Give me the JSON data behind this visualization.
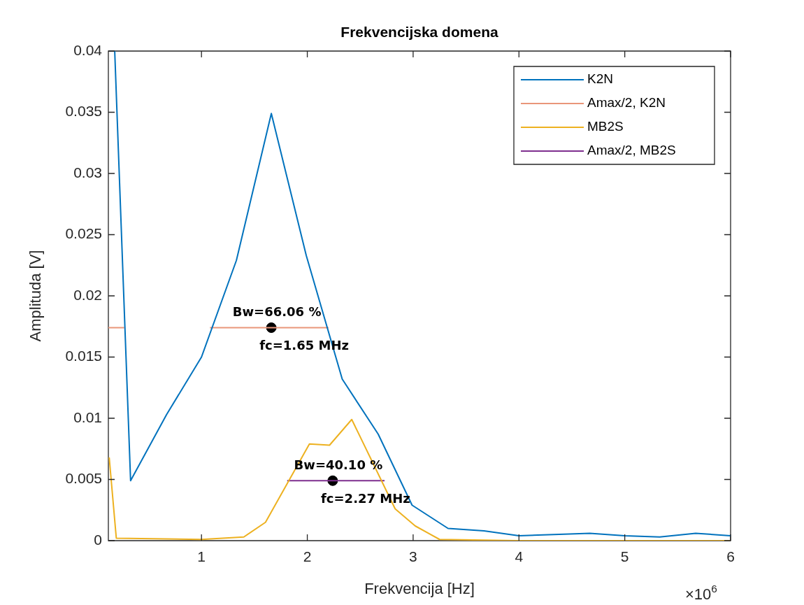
{
  "chart_data": {
    "type": "line",
    "title": "Frekvencijska domena",
    "xlabel": "Frekvencija [Hz]",
    "ylabel": "Amplituda [V]",
    "xlim": [
      0.12,
      6
    ],
    "ylim": [
      0,
      0.04
    ],
    "xticks": [
      1,
      2,
      3,
      4,
      5,
      6
    ],
    "yticks": [
      0,
      0.005,
      0.01,
      0.015,
      0.02,
      0.025,
      0.03,
      0.035,
      0.04
    ],
    "grid": false,
    "legend": "top right",
    "marker": "none",
    "line_style": "solid",
    "series": [
      {
        "name": "K2N",
        "color": "#0072bd",
        "x": [
          0.18,
          0.33,
          0.67,
          1.0,
          1.33,
          1.66,
          1.99,
          2.33,
          2.67,
          2.99,
          3.33,
          3.67,
          4.0,
          4.33,
          4.67,
          5.0,
          5.33,
          5.67,
          6.0
        ],
        "values": [
          0.04,
          0.0049,
          0.0103,
          0.015,
          0.0229,
          0.0349,
          0.0233,
          0.0132,
          0.0087,
          0.0029,
          0.001,
          0.0008,
          0.0004,
          0.0005,
          0.0006,
          0.0004,
          0.0003,
          0.0006,
          0.0004
        ]
      },
      {
        "name": "Amax/2, K2N",
        "color": "#e9967a",
        "x": [
          0.12,
          0.27,
          0.7,
          1.08,
          2.2
        ],
        "values": [
          0.0174,
          0.0174,
          null,
          0.0174,
          0.0174
        ]
      },
      {
        "name": "MB2S",
        "color": "#edb120",
        "x": [
          0.128,
          0.195,
          1.0,
          1.4,
          1.605,
          2.02,
          2.21,
          2.42,
          2.83,
          3.02,
          3.25,
          4.0,
          5.0,
          6.0
        ],
        "values": [
          0.0068,
          0.0002,
          0.0001,
          0.0003,
          0.0015,
          0.0079,
          0.0078,
          0.0099,
          0.0026,
          0.0012,
          0.0001,
          0,
          0,
          0
        ]
      },
      {
        "name": "Amax/2, MB2S",
        "color": "#7e2f8e",
        "x": [
          1.81,
          2.73
        ],
        "values": [
          0.0049,
          0.0049
        ]
      },
      {
        "type": "scatter",
        "color": "#000000",
        "marker": "circle",
        "x": [
          1.66,
          2.24
        ],
        "values": [
          0.0174,
          0.0049
        ]
      }
    ],
    "annotations": [
      "Bw=66.06 %",
      "fc=1.65 MHz",
      "Bw=40.10 %",
      "fc=2.27 MHz",
      "×10$^{6}$"
    ]
  }
}
